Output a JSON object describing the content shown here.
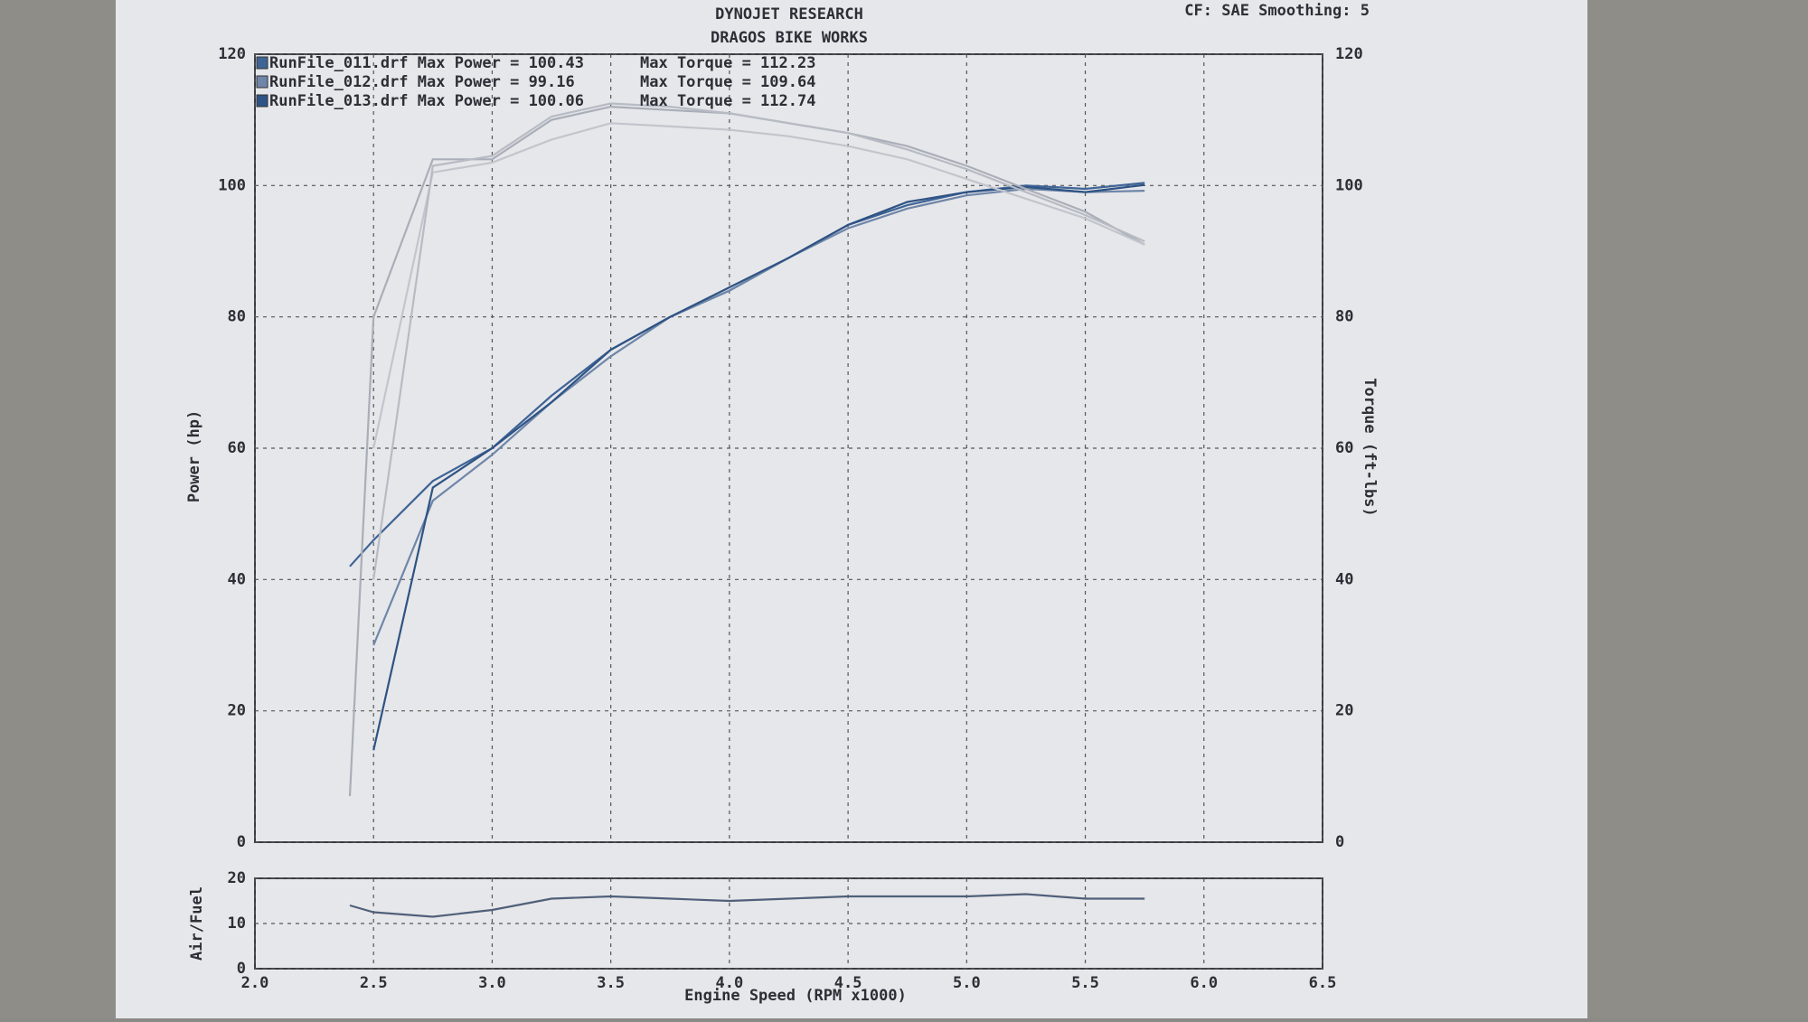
{
  "chart_data": [
    {
      "type": "line",
      "title": "DYNOJET RESEARCH",
      "subtitle": "DRAGOS BIKE WORKS",
      "note": "CF: SAE  Smoothing: 5",
      "ylabel": "Power (hp)",
      "y2label": "Torque (ft-lbs)",
      "x": [
        2.4,
        2.5,
        2.75,
        3.0,
        3.25,
        3.5,
        3.75,
        4.0,
        4.25,
        4.5,
        4.75,
        5.0,
        5.25,
        5.5,
        5.75
      ],
      "xlim": [
        2.0,
        6.5
      ],
      "ylim": [
        0,
        120
      ],
      "y2lim": [
        0,
        120
      ],
      "yticks": [
        0,
        20,
        40,
        60,
        80,
        100,
        120
      ],
      "y2ticks": [
        0,
        20,
        40,
        60,
        80,
        100,
        120
      ],
      "grid": true,
      "series": [
        {
          "name": "RunFile_011.drf Max Power = 100.43",
          "color": "#3f6496",
          "values": [
            42,
            46,
            55,
            60,
            68,
            75,
            80,
            84,
            89,
            94,
            97,
            99,
            100,
            99.5,
            100.4
          ]
        },
        {
          "name": "RunFile_012.drf Max Power = 99.16",
          "color": "#6f86a8",
          "values": [
            null,
            30,
            52,
            59,
            67,
            74,
            80,
            84,
            89,
            93.5,
            96.5,
            98.5,
            99.5,
            99,
            99.2
          ]
        },
        {
          "name": "RunFile_013.drf Max Power = 100.06",
          "color": "#2e5384",
          "values": [
            null,
            14,
            54,
            60,
            67,
            75,
            80,
            84.5,
            89,
            94,
            97.5,
            99,
            99.8,
            99,
            100.1
          ]
        },
        {
          "name": "Max Torque = 112.23",
          "color": "#a9aeb8",
          "axis": "y2",
          "values": [
            7,
            80,
            104,
            104,
            110,
            112,
            111.5,
            111,
            109.5,
            108,
            106,
            103,
            99.5,
            96,
            91
          ]
        },
        {
          "name": "Max Torque = 109.64",
          "color": "#c2c5cc",
          "axis": "y2",
          "values": [
            null,
            60,
            102,
            103.5,
            107,
            109.5,
            109,
            108.5,
            107.5,
            106,
            104,
            101,
            98,
            95,
            91
          ]
        },
        {
          "name": "Max Torque = 112.74",
          "color": "#b7bbc3",
          "axis": "y2",
          "values": [
            null,
            40,
            103,
            104.5,
            110.5,
            112.5,
            112,
            111,
            109.5,
            108,
            105.5,
            102.5,
            99,
            95.5,
            91.5
          ]
        }
      ]
    },
    {
      "type": "line",
      "xlabel": "Engine Speed (RPM x1000)",
      "ylabel": "Air/Fuel",
      "x": [
        2.4,
        2.5,
        2.75,
        3.0,
        3.25,
        3.5,
        3.75,
        4.0,
        4.25,
        4.5,
        4.75,
        5.0,
        5.25,
        5.5,
        5.75
      ],
      "xlim": [
        2.0,
        6.5
      ],
      "ylim": [
        0,
        20
      ],
      "yticks": [
        0,
        10,
        20
      ],
      "xticks": [
        {
          "value": 2,
          "label": "2.0"
        },
        2.5,
        {
          "value": 3,
          "label": "3.0"
        },
        3.5,
        {
          "value": 4,
          "label": "4.0"
        },
        4.5,
        {
          "value": 5,
          "label": "5.0"
        },
        5.5,
        {
          "value": 6,
          "label": "6.0"
        },
        6.5
      ],
      "grid": true,
      "series": [
        {
          "color": "#50607a",
          "values": [
            14,
            12.5,
            11.5,
            13,
            15.5,
            16,
            15.5,
            15,
            15.5,
            16,
            16,
            16,
            16.5,
            15.5,
            15.5
          ]
        }
      ]
    }
  ]
}
